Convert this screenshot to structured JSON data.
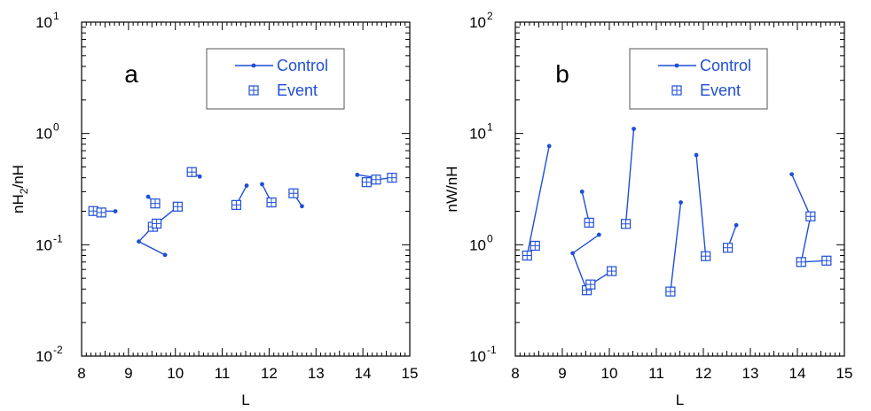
{
  "colors": {
    "series": "#1f4fd6",
    "axis": "#000000"
  },
  "chart_data": [
    {
      "type": "line",
      "panel_label": "a",
      "xlabel": "L",
      "ylabel_main": "nH",
      "ylabel_sub": "2",
      "ylabel_rest": "/nH",
      "xlim": [
        8,
        15
      ],
      "ylim": [
        0.01,
        10
      ],
      "yscale": "log",
      "grid": false,
      "legend_position": "top-right",
      "x_ticks": [
        "8",
        "9",
        "10",
        "11",
        "12",
        "13",
        "14",
        "15"
      ],
      "y_ticks": [
        {
          "base": "10",
          "exp": "-2",
          "value": 0.01
        },
        {
          "base": "10",
          "exp": "-1",
          "value": 0.1
        },
        {
          "base": "10",
          "exp": "0",
          "value": 1
        },
        {
          "base": "10",
          "exp": "1",
          "value": 10
        }
      ],
      "legend": [
        {
          "name": "Control",
          "marker": "dot"
        },
        {
          "name": "Event",
          "marker": "boxed-plus"
        }
      ],
      "groups": [
        {
          "control": [
            [
              8.72,
              0.2
            ]
          ],
          "event": [
            [
              8.25,
              0.201
            ],
            [
              8.42,
              0.195
            ]
          ]
        },
        {
          "control": [
            [
              9.42,
              0.27
            ]
          ],
          "event": [
            [
              9.57,
              0.235
            ]
          ]
        },
        {
          "control": [
            [
              9.78,
              0.081
            ],
            [
              9.22,
              0.107
            ]
          ],
          "event": [
            [
              9.52,
              0.145
            ],
            [
              9.6,
              0.155
            ],
            [
              10.05,
              0.22
            ]
          ]
        },
        {
          "control": [
            [
              10.52,
              0.41
            ]
          ],
          "event": [
            [
              10.35,
              0.45
            ]
          ]
        },
        {
          "control": [
            [
              11.52,
              0.34
            ]
          ],
          "event": [
            [
              11.3,
              0.228
            ]
          ]
        },
        {
          "control": [
            [
              11.85,
              0.35
            ]
          ],
          "event": [
            [
              12.05,
              0.24
            ]
          ]
        },
        {
          "control": [
            [
              12.7,
              0.222
            ]
          ],
          "event": [
            [
              12.52,
              0.29
            ]
          ]
        },
        {
          "control": [
            [
              13.88,
              0.425
            ],
            [
              14.3,
              0.4
            ]
          ],
          "event": [
            [
              14.08,
              0.365
            ],
            [
              14.28,
              0.385
            ],
            [
              14.62,
              0.4
            ]
          ]
        }
      ]
    },
    {
      "type": "line",
      "panel_label": "b",
      "xlabel": "L",
      "ylabel_main": "nW/nH",
      "ylabel_sub": "",
      "ylabel_rest": "",
      "xlim": [
        8,
        15
      ],
      "ylim": [
        0.1,
        100
      ],
      "yscale": "log",
      "grid": false,
      "legend_position": "top-right",
      "x_ticks": [
        "8",
        "9",
        "10",
        "11",
        "12",
        "13",
        "14",
        "15"
      ],
      "y_ticks": [
        {
          "base": "10",
          "exp": "-1",
          "value": 0.1
        },
        {
          "base": "10",
          "exp": "0",
          "value": 1
        },
        {
          "base": "10",
          "exp": "1",
          "value": 10
        },
        {
          "base": "10",
          "exp": "2",
          "value": 100
        }
      ],
      "legend": [
        {
          "name": "Control",
          "marker": "dot"
        },
        {
          "name": "Event",
          "marker": "boxed-plus"
        }
      ],
      "groups": [
        {
          "control": [
            [
              8.72,
              7.7
            ]
          ],
          "event": [
            [
              8.25,
              0.8
            ],
            [
              8.42,
              0.98
            ]
          ]
        },
        {
          "control": [
            [
              9.42,
              3.0
            ]
          ],
          "event": [
            [
              9.57,
              1.58
            ]
          ]
        },
        {
          "control": [
            [
              9.78,
              1.23
            ],
            [
              9.22,
              0.84
            ]
          ],
          "event": [
            [
              9.52,
              0.39
            ],
            [
              9.6,
              0.44
            ],
            [
              10.05,
              0.58
            ]
          ]
        },
        {
          "control": [
            [
              10.52,
              11.0
            ]
          ],
          "event": [
            [
              10.35,
              1.54
            ]
          ]
        },
        {
          "control": [
            [
              11.52,
              2.4
            ]
          ],
          "event": [
            [
              11.3,
              0.38
            ]
          ]
        },
        {
          "control": [
            [
              11.85,
              6.4
            ]
          ],
          "event": [
            [
              12.05,
              0.79
            ]
          ]
        },
        {
          "control": [
            [
              12.7,
              1.5
            ]
          ],
          "event": [
            [
              12.52,
              0.94
            ]
          ]
        },
        {
          "control": [
            [
              13.88,
              4.3
            ]
          ],
          "event": [
            [
              14.28,
              1.8
            ],
            [
              14.08,
              0.7
            ],
            [
              14.62,
              0.72
            ]
          ]
        }
      ]
    }
  ]
}
